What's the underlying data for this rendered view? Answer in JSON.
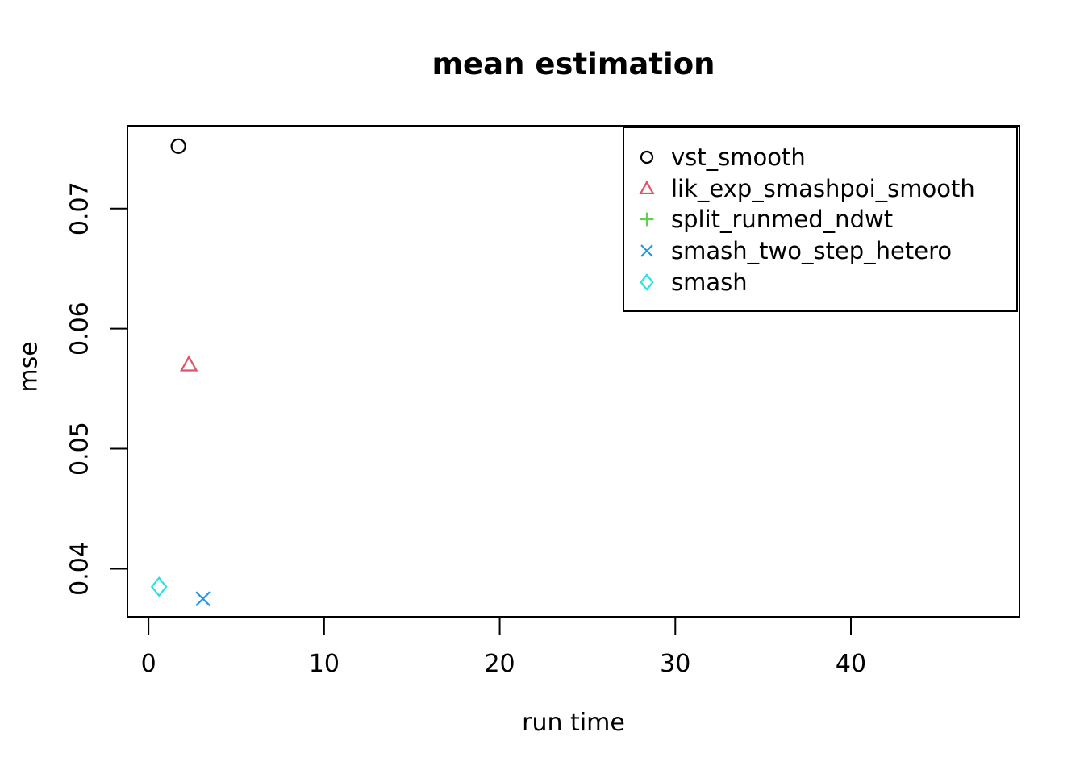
{
  "title": "mean estimation",
  "axes": {
    "xlabel": "run time",
    "ylabel": "mse"
  },
  "chart_data": {
    "type": "scatter",
    "title": "mean estimation",
    "xlabel": "run time",
    "ylabel": "mse",
    "xlim": [
      -1.2,
      49.6
    ],
    "ylim": [
      0.036,
      0.0769
    ],
    "x_ticks": [
      0,
      10,
      20,
      30,
      40
    ],
    "x_tick_labels": [
      "0",
      "10",
      "20",
      "30",
      "40"
    ],
    "y_ticks": [
      0.04,
      0.05,
      0.06,
      0.07
    ],
    "y_tick_labels": [
      "0.04",
      "0.05",
      "0.06",
      "0.07"
    ],
    "grid": false,
    "legend_position": "top-right",
    "axis_color": "#000000",
    "series": [
      {
        "name": "vst_smooth",
        "marker": "circle",
        "color": "#000000",
        "points": [
          {
            "x": 1.7,
            "y": 0.0752
          }
        ]
      },
      {
        "name": "lik_exp_smashpoi_smooth",
        "marker": "triangle",
        "color": "#DF536B",
        "points": [
          {
            "x": 2.3,
            "y": 0.057
          }
        ]
      },
      {
        "name": "split_runmed_ndwt",
        "marker": "plus",
        "color": "#61D04F",
        "points": []
      },
      {
        "name": "smash_two_step_hetero",
        "marker": "x",
        "color": "#2297E6",
        "points": [
          {
            "x": 3.1,
            "y": 0.0375
          }
        ]
      },
      {
        "name": "smash",
        "marker": "diamond",
        "color": "#28E2E5",
        "points": [
          {
            "x": 0.6,
            "y": 0.0385
          }
        ]
      }
    ]
  }
}
